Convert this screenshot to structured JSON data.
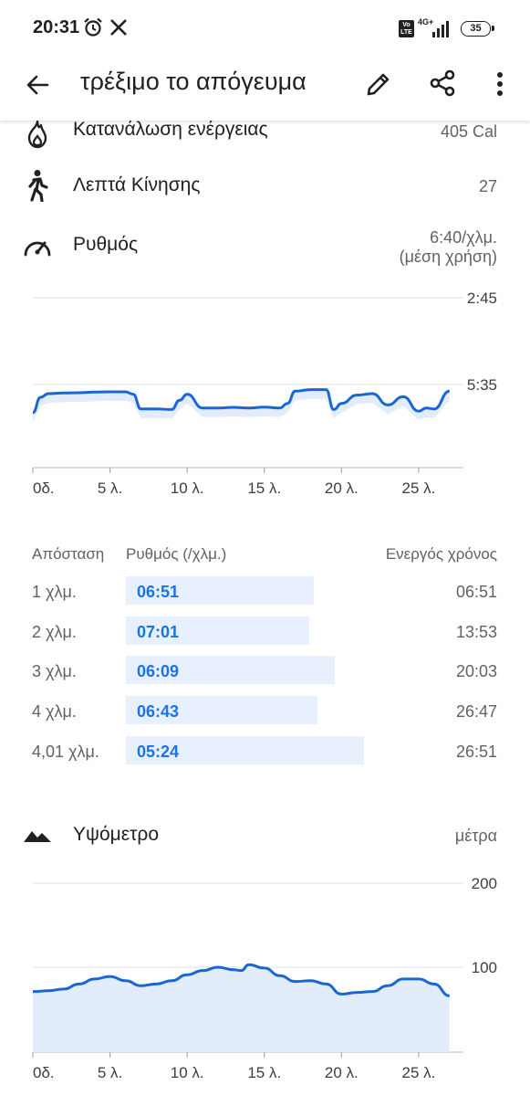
{
  "status_bar": {
    "time": "20:31",
    "network": "4G+",
    "volte": "Vo LTE",
    "battery": "35",
    "icons": [
      "alarm-icon",
      "x-app-icon",
      "signal-icon",
      "battery-icon"
    ]
  },
  "app_bar": {
    "title": "τρέξιμο το απόγευμα",
    "icons": [
      "back-arrow-icon",
      "edit-pencil-icon",
      "share-icon",
      "more-vert-icon"
    ]
  },
  "metrics": {
    "energy": {
      "label": "Κατανάλωση ενέργειας",
      "value": "405 Cal",
      "icon": "flame-icon"
    },
    "move_minutes": {
      "label": "Λεπτά Κίνησης",
      "value": "27",
      "icon": "walking-person-icon"
    },
    "pace": {
      "label": "Ρυθμός",
      "value_line1": "6:40/χλμ.",
      "value_line2": "(μέση χρήση)",
      "icon": "speedometer-icon"
    }
  },
  "colors": {
    "accent": "#1a73e8",
    "line": "#1967d2",
    "area_fill": "#e3ecfb",
    "grid": "#e0e0e0",
    "split_bar": "#e8f0fe"
  },
  "chart_data": [
    {
      "type": "line",
      "name": "pace",
      "x": [
        0,
        0.5,
        1,
        2,
        3,
        4,
        5,
        6,
        6.5,
        7,
        8,
        9,
        9.5,
        10,
        11,
        12,
        13,
        14,
        15,
        16,
        16.5,
        17,
        18,
        19,
        19.5,
        20,
        21,
        22,
        23,
        24,
        25,
        25.5,
        26,
        27
      ],
      "y": [
        6.5,
        6.0,
        5.88,
        5.86,
        5.85,
        5.83,
        5.82,
        5.82,
        5.9,
        6.38,
        6.38,
        6.4,
        6.1,
        5.9,
        6.35,
        6.35,
        6.33,
        6.35,
        6.32,
        6.35,
        6.2,
        5.8,
        5.75,
        5.75,
        6.4,
        6.2,
        5.93,
        5.88,
        6.25,
        5.98,
        6.45,
        6.35,
        6.38,
        5.8
      ],
      "x_ticks": [
        "0δ.",
        "5 λ.",
        "10 λ.",
        "15 λ.",
        "20 λ.",
        "25 λ."
      ],
      "x_tick_values": [
        0,
        5,
        10,
        15,
        20,
        25
      ],
      "y_ticks": [
        "2:45",
        "5:35"
      ],
      "y_tick_values": [
        2.75,
        5.583
      ],
      "xlim": [
        0,
        27.9
      ],
      "ylim_visible_top": 2.75,
      "y_inverted": true,
      "grid": true
    },
    {
      "type": "area",
      "name": "elevation",
      "x": [
        0,
        1,
        2,
        3,
        4,
        5,
        6,
        7,
        8,
        9,
        10,
        11,
        12,
        13,
        13.5,
        14,
        15,
        16,
        17,
        18,
        19,
        20,
        21,
        22,
        23,
        24,
        25,
        26,
        27
      ],
      "y": [
        71,
        72,
        74,
        80,
        86,
        89,
        84,
        78,
        80,
        84,
        91,
        96,
        100,
        97,
        96,
        103,
        99,
        90,
        83,
        84,
        80,
        68,
        70,
        71,
        78,
        86,
        86,
        80,
        66
      ],
      "x_ticks": [
        "0δ.",
        "5 λ.",
        "10 λ.",
        "15 λ.",
        "20 λ.",
        "25 λ."
      ],
      "x_tick_values": [
        0,
        5,
        10,
        15,
        20,
        25
      ],
      "y_ticks": [
        "200",
        "100"
      ],
      "y_tick_values": [
        200,
        100
      ],
      "xlim": [
        0,
        27.9
      ],
      "ylim": [
        0,
        200
      ],
      "grid": true
    }
  ],
  "splits": {
    "headers": {
      "distance": "Απόσταση",
      "pace": "Ρυθμός (/χλμ.)",
      "active_time": "Ενεργός χρόνος"
    },
    "rows": [
      {
        "distance": "1 χλμ.",
        "pace": "06:51",
        "time": "06:51",
        "pace_min": 6.85
      },
      {
        "distance": "2 χλμ.",
        "pace": "07:01",
        "time": "13:53",
        "pace_min": 7.017
      },
      {
        "distance": "3 χλμ.",
        "pace": "06:09",
        "time": "20:03",
        "pace_min": 6.15
      },
      {
        "distance": "4 χλμ.",
        "pace": "06:43",
        "time": "26:47",
        "pace_min": 6.717
      },
      {
        "distance": "4,01 χλμ.",
        "pace": "05:24",
        "time": "26:51",
        "pace_min": 5.4
      }
    ]
  },
  "elevation": {
    "title": "Υψόμετρο",
    "unit": "μέτρα",
    "icon": "mountain-icon"
  }
}
